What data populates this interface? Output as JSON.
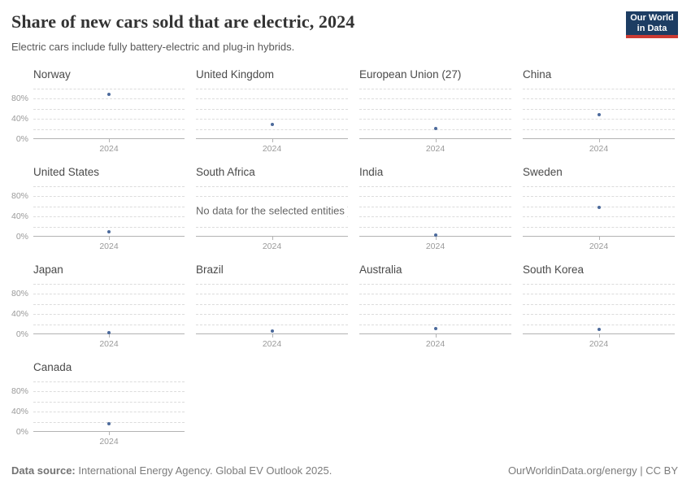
{
  "header": {
    "title": "Share of new cars sold that are electric, 2024",
    "subtitle": "Electric cars include fully battery-electric and plug-in hybrids.",
    "logo": {
      "line1": "Our World",
      "line2": "in Data",
      "bg_color": "#1d3d63",
      "bar_color": "#cc3b33"
    }
  },
  "chart_data": {
    "type": "scatter",
    "layout": "small-multiples",
    "title": "Share of new cars sold that are electric, 2024",
    "x_tick_label": "2024",
    "ylim": [
      0,
      100
    ],
    "ytick_labels": [
      "0%",
      "40%",
      "80%"
    ],
    "ytick_values": [
      0,
      40,
      80
    ],
    "gridline_values": [
      20,
      40,
      60,
      80,
      100
    ],
    "grid": true,
    "point_color": "#4c6a9c",
    "no_data_label": "No data for the selected entities",
    "unit": "%",
    "panels": [
      {
        "title": "Norway",
        "x": "2024",
        "value": 89
      },
      {
        "title": "United Kingdom",
        "x": "2024",
        "value": 29
      },
      {
        "title": "European Union (27)",
        "x": "2024",
        "value": 21
      },
      {
        "title": "China",
        "x": "2024",
        "value": 48
      },
      {
        "title": "United States",
        "x": "2024",
        "value": 10
      },
      {
        "title": "South Africa",
        "x": "2024",
        "value": null
      },
      {
        "title": "India",
        "x": "2024",
        "value": 2.5
      },
      {
        "title": "Sweden",
        "x": "2024",
        "value": 58
      },
      {
        "title": "Japan",
        "x": "2024",
        "value": 3
      },
      {
        "title": "Brazil",
        "x": "2024",
        "value": 6.5
      },
      {
        "title": "Australia",
        "x": "2024",
        "value": 12
      },
      {
        "title": "South Korea",
        "x": "2024",
        "value": 9
      },
      {
        "title": "Canada",
        "x": "2024",
        "value": 16
      }
    ]
  },
  "footer": {
    "source_label": "Data source:",
    "source_text": " International Energy Agency. Global EV Outlook 2025.",
    "credit": "OurWorldinData.org/energy | CC BY"
  }
}
